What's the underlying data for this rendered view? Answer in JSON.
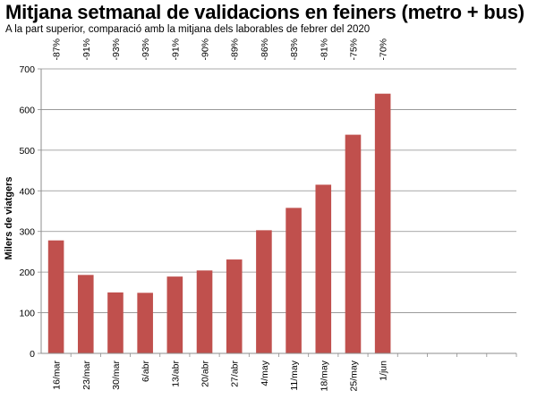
{
  "page": {
    "title": "Mitjana setmanal de validacions en feiners (metro + bus)",
    "subtitle": "A la part superior, comparació amb la mitjana dels laborables de febrer del 2020"
  },
  "chart_data": {
    "type": "bar",
    "title": "Mitjana setmanal de validacions en feiners (metro + bus)",
    "subtitle": "A la part superior, comparació amb la mitjana dels laborables de febrer del 2020",
    "ylabel": "Milers de viatgers",
    "xlabel": "",
    "ylim": [
      0,
      700
    ],
    "yticks": [
      0,
      100,
      200,
      300,
      400,
      500,
      600,
      700
    ],
    "grid": true,
    "categories": [
      "16/mar",
      "23/mar",
      "30/mar",
      "6/abr",
      "13/abr",
      "20/abr",
      "27/abr",
      "4/may",
      "11/may",
      "18/may",
      "25/may",
      "1/jun",
      "",
      "",
      "",
      ""
    ],
    "values": [
      278,
      193,
      150,
      149,
      189,
      204,
      231,
      303,
      358,
      415,
      538,
      639,
      null,
      null,
      null,
      null
    ],
    "top_labels": [
      "-87%",
      "-91%",
      "-93%",
      "-93%",
      "-91%",
      "-90%",
      "-89%",
      "-86%",
      "-83%",
      "-81%",
      "-75%",
      "-70%",
      "",
      "",
      "",
      ""
    ],
    "bar_color": "#c0504d",
    "grid_color": "#8c8c8c"
  }
}
